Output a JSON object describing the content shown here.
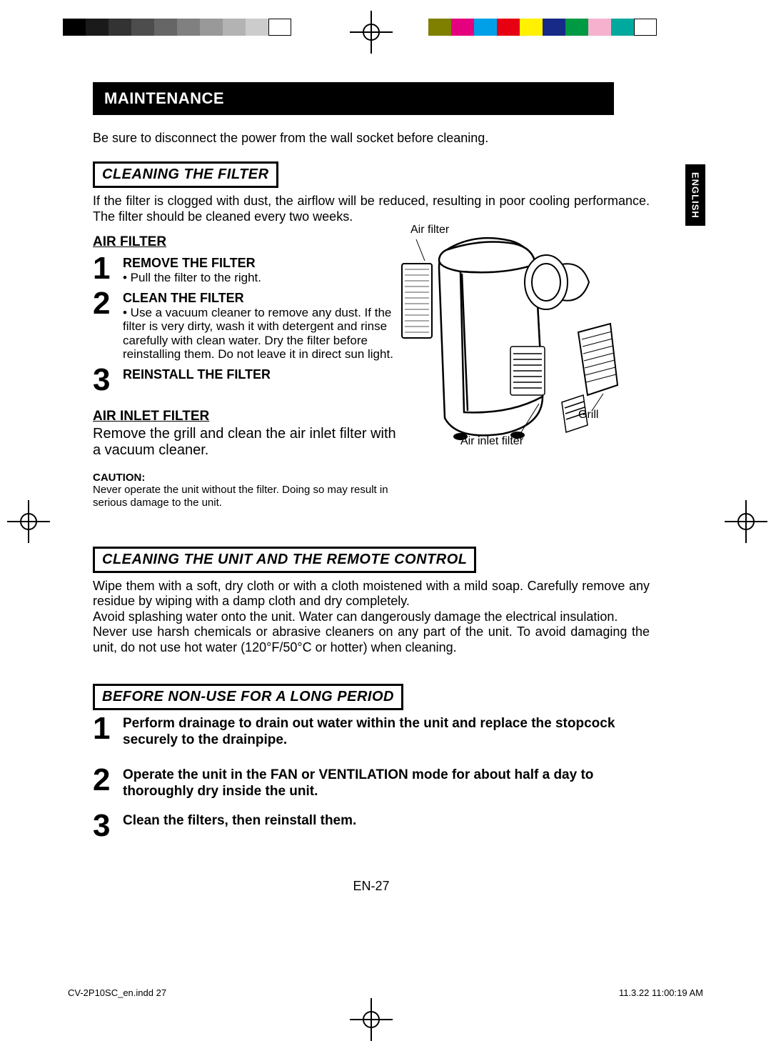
{
  "colorbar_left": [
    "#000000",
    "#1a1a1a",
    "#333333",
    "#4d4d4d",
    "#666666",
    "#808080",
    "#999999",
    "#b3b3b3",
    "#cccccc",
    "#ffffff"
  ],
  "colorbar_right": [
    "#7f7f00",
    "#e4007f",
    "#00a0e9",
    "#e60012",
    "#fff100",
    "#172a88",
    "#009944",
    "#f6b1cf",
    "#00a99d",
    "#ffffff"
  ],
  "header": "MAINTENANCE",
  "intro": "Be sure to disconnect the power from the wall socket before cleaning.",
  "lang_tab": "ENGLISH",
  "section1": {
    "title": "CLEANING THE FILTER",
    "body": "If the filter is clogged with dust, the airflow will be reduced, resulting in poor cooling performance.  The filter should be cleaned every two weeks.",
    "air_filter_label": "AIR FILTER",
    "steps": [
      {
        "n": "1",
        "title": "REMOVE THE FILTER",
        "body": "• Pull the filter to the right."
      },
      {
        "n": "2",
        "title": "CLEAN THE FILTER",
        "body": "• Use a vacuum cleaner to remove any dust.  If the filter is very dirty, wash it with detergent and rinse carefully with clean water. Dry the filter before reinstalling them. Do not leave it in direct sun light."
      },
      {
        "n": "3",
        "title": "REINSTALL THE FILTER",
        "body": ""
      }
    ],
    "air_inlet_label": "AIR INLET FILTER ",
    "air_inlet_body": "Remove the grill and clean the air inlet filter with a vacuum cleaner.",
    "caution_label": "CAUTION:",
    "caution_body": "Never operate the unit without the filter.  Doing so may result in serious damage to the unit."
  },
  "diagram_labels": {
    "air_filter": "Air filter",
    "grill": "Grill",
    "air_inlet": "Air inlet filter"
  },
  "section2": {
    "title": "CLEANING THE UNIT AND THE REMOTE CONTROL",
    "p1": "Wipe them with a soft, dry cloth or with a cloth moistened with a mild soap. Carefully remove any residue by wiping with a damp cloth and dry completely.",
    "p2": "Avoid splashing water onto the unit.  Water can dangerously damage the electrical insulation.",
    "p3": "Never use harsh chemicals or abrasive cleaners on any part of the unit.  To avoid  damaging the unit, do not use hot water (120°F/50°C or hotter) when cleaning."
  },
  "section3": {
    "title": "BEFORE NON-USE FOR A LONG PERIOD",
    "steps": [
      {
        "n": "1",
        "body": "Perform drainage to drain out water within the unit and replace the stopcock securely to the drainpipe."
      },
      {
        "n": "2",
        "body": "Operate the unit in the FAN or VENTILATION mode for about half a day to thoroughly dry inside the unit."
      },
      {
        "n": "3",
        "body": "Clean the filters, then reinstall them."
      }
    ]
  },
  "page_num": "EN-27",
  "footer_left": "CV-2P10SC_en.indd   27",
  "footer_right": "11.3.22   11:00:19 AM"
}
